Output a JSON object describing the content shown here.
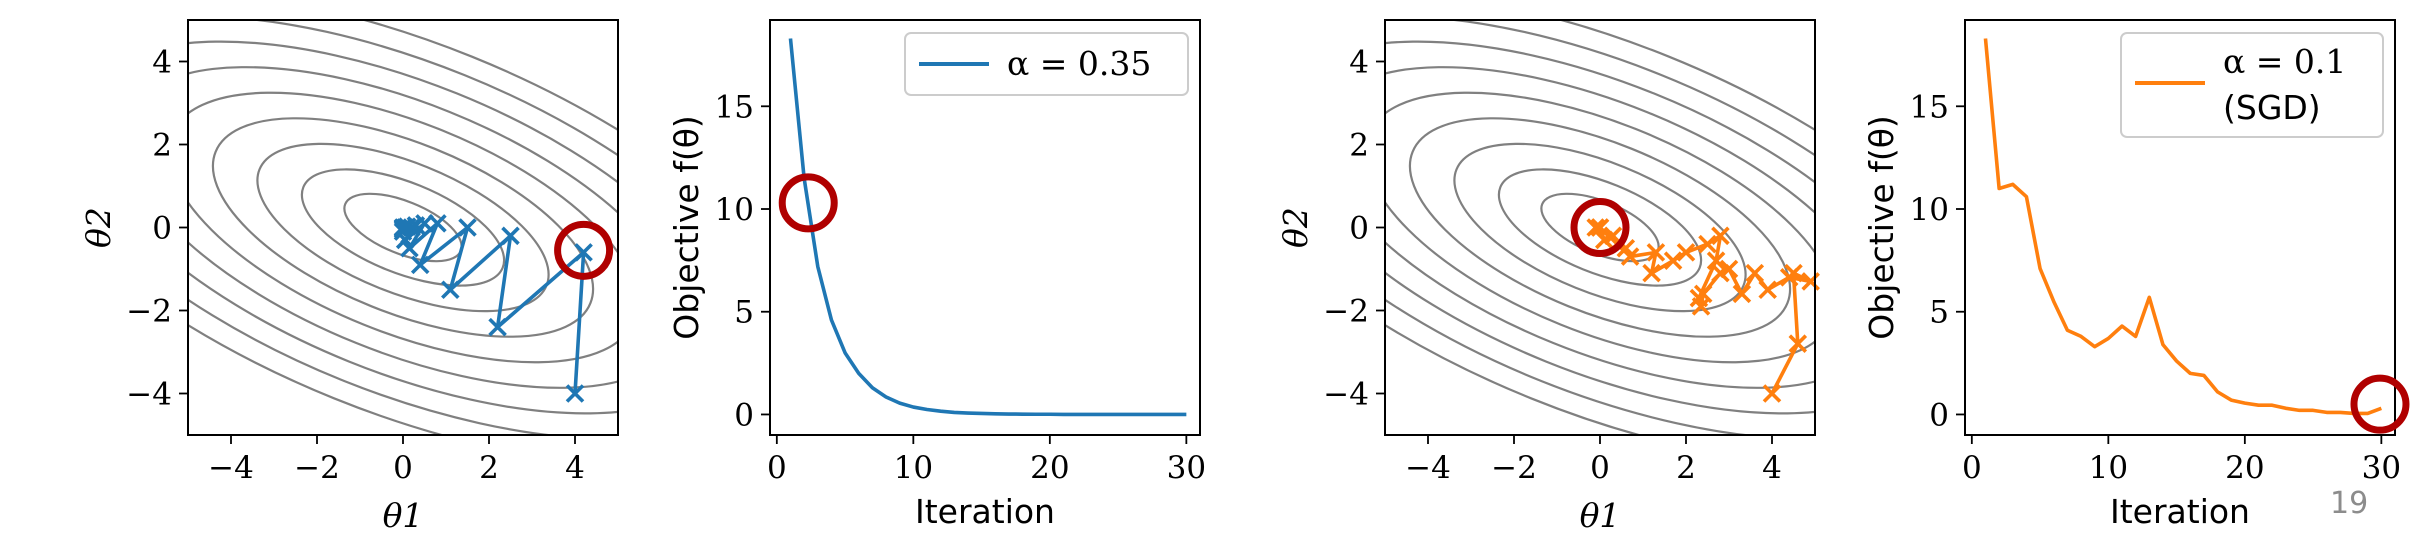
{
  "page_number": "19",
  "colors": {
    "contour": "#808080",
    "sgd_blue": "#1f77b4",
    "sgd_orange": "#ff7f0e",
    "highlight_circle": "#b00000",
    "frame": "#000000"
  },
  "chart_data": [
    {
      "type": "contour-path",
      "xlabel": "θ1",
      "ylabel": "θ2",
      "xlim": [
        -5,
        5
      ],
      "ylim": [
        -5,
        5
      ],
      "xticks": [
        "−4",
        "−2",
        "0",
        "2",
        "4"
      ],
      "yticks": [
        "4",
        "2",
        "0",
        "−2",
        "−4"
      ],
      "grid": false,
      "series": [
        {
          "color": "#1f77b4",
          "marker": "x",
          "x": [
            4.0,
            4.2,
            2.2,
            2.5,
            1.1,
            1.5,
            0.4,
            0.8,
            0.15,
            0.5,
            0.05,
            0.3,
            0.0,
            0.2,
            0.0,
            0.1,
            0.0,
            0.05,
            0.0
          ],
          "y": [
            -4.0,
            -0.6,
            -2.4,
            -0.2,
            -1.5,
            0.0,
            -0.9,
            0.1,
            -0.5,
            0.1,
            -0.3,
            0.05,
            -0.1,
            0.0,
            -0.05,
            0.02,
            -0.02,
            0.0,
            0.0
          ]
        }
      ],
      "highlight": {
        "x": 4.2,
        "y": -0.55
      }
    },
    {
      "type": "line",
      "xlabel": "Iteration",
      "ylabel": "Objective f(θ)",
      "xlim": [
        -0.5,
        31
      ],
      "ylim": [
        -1,
        19.2
      ],
      "xticks": [
        "0",
        "10",
        "20",
        "30"
      ],
      "yticks": [
        "15",
        "10",
        "5",
        "0"
      ],
      "legend": {
        "label": "α = 0.35",
        "position": "top-right"
      },
      "series": [
        {
          "name": "α = 0.35",
          "color": "#1f77b4",
          "x": [
            1,
            2,
            3,
            4,
            5,
            6,
            7,
            8,
            9,
            10,
            11,
            12,
            13,
            14,
            15,
            16,
            17,
            18,
            19,
            20,
            21,
            22,
            23,
            24,
            25,
            26,
            27,
            28,
            29,
            30
          ],
          "y": [
            18.3,
            11.5,
            7.2,
            4.6,
            3.0,
            2.0,
            1.3,
            0.85,
            0.55,
            0.36,
            0.24,
            0.16,
            0.1,
            0.07,
            0.05,
            0.03,
            0.02,
            0.015,
            0.01,
            0.01,
            0.0,
            0.0,
            0.0,
            0.0,
            0.0,
            0.0,
            0.0,
            0.0,
            0.0,
            0.0
          ]
        }
      ],
      "highlight": {
        "x": 2.3,
        "y": 10.3
      }
    },
    {
      "type": "contour-path",
      "xlabel": "θ1",
      "ylabel": "θ2",
      "xlim": [
        -5,
        5
      ],
      "ylim": [
        -5,
        5
      ],
      "xticks": [
        "−4",
        "−2",
        "0",
        "2",
        "4"
      ],
      "yticks": [
        "4",
        "2",
        "0",
        "−2",
        "−4"
      ],
      "grid": false,
      "series": [
        {
          "color": "#ff7f0e",
          "marker": "x",
          "x": [
            4.0,
            4.6,
            4.5,
            4.9,
            4.4,
            3.9,
            3.6,
            3.3,
            3.0,
            2.8,
            2.4,
            2.35,
            2.3,
            2.7,
            2.8,
            2.5,
            2.0,
            1.7,
            1.2,
            1.3,
            0.7,
            0.6,
            0.4,
            0.3,
            0.1,
            0.0,
            -0.1,
            0.0
          ],
          "y": [
            -4.0,
            -2.8,
            -1.1,
            -1.3,
            -1.2,
            -1.5,
            -1.1,
            -1.6,
            -1.0,
            -1.1,
            -1.6,
            -1.9,
            -1.7,
            -0.8,
            -0.2,
            -0.4,
            -0.6,
            -0.8,
            -1.1,
            -0.6,
            -0.7,
            -0.5,
            -0.4,
            -0.2,
            -0.3,
            0.0,
            0.0,
            0.0
          ]
        }
      ],
      "highlight": {
        "x": 0.0,
        "y": 0.0
      }
    },
    {
      "type": "line",
      "xlabel": "Iteration",
      "ylabel": "Objective f(θ)",
      "xlim": [
        -0.5,
        31
      ],
      "ylim": [
        -1,
        19.2
      ],
      "xticks": [
        "0",
        "10",
        "20",
        "30"
      ],
      "yticks": [
        "15",
        "10",
        "5",
        "0"
      ],
      "legend": {
        "label": "α = 0.1",
        "label_line2": "(SGD)",
        "position": "top-right"
      },
      "series": [
        {
          "name": "α = 0.1 (SGD)",
          "color": "#ff7f0e",
          "x": [
            1,
            2,
            3,
            4,
            5,
            6,
            7,
            8,
            9,
            10,
            11,
            12,
            13,
            14,
            15,
            16,
            17,
            18,
            19,
            20,
            21,
            22,
            23,
            24,
            25,
            26,
            27,
            28,
            29,
            30
          ],
          "y": [
            18.3,
            11.0,
            11.2,
            10.6,
            7.1,
            5.5,
            4.1,
            3.8,
            3.3,
            3.7,
            4.3,
            3.8,
            5.7,
            3.4,
            2.6,
            2.0,
            1.9,
            1.1,
            0.7,
            0.55,
            0.45,
            0.45,
            0.3,
            0.2,
            0.2,
            0.1,
            0.1,
            0.05,
            0.05,
            0.3
          ]
        }
      ],
      "highlight": {
        "x": 29.9,
        "y": 0.5
      }
    }
  ]
}
